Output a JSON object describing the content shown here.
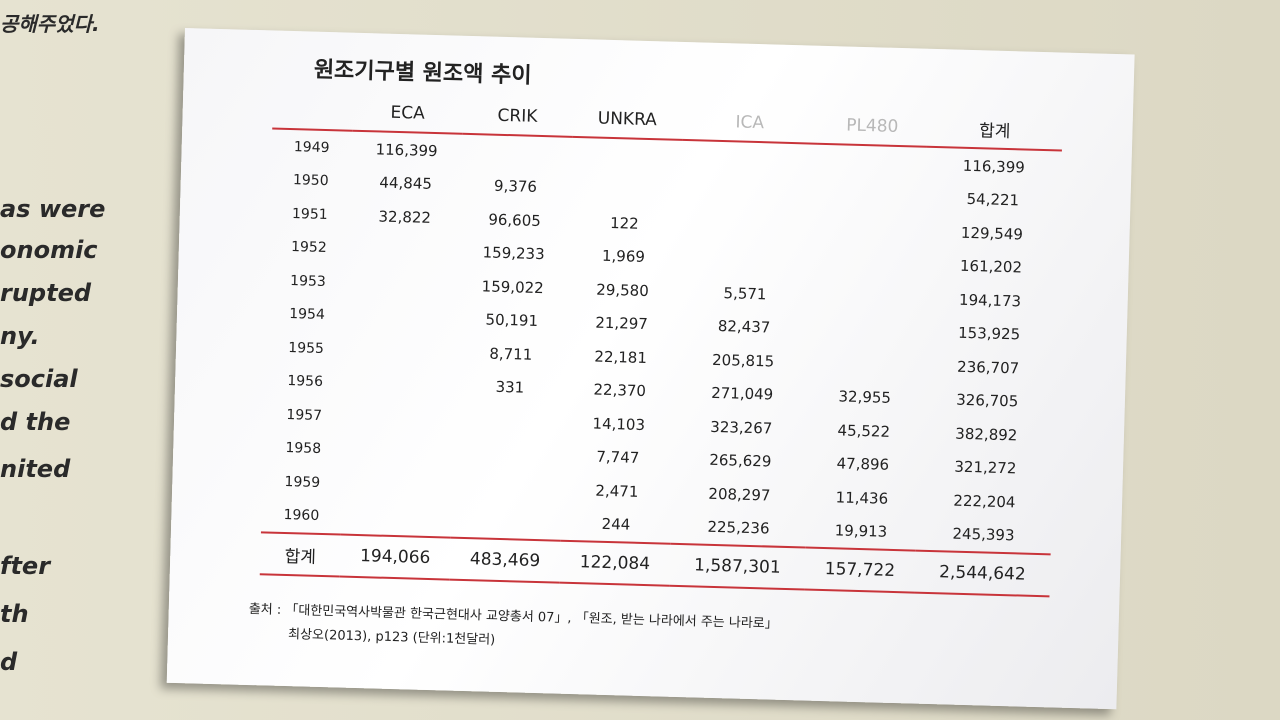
{
  "wall": {
    "lines": [
      "공해주었다.",
      "as were",
      "onomic",
      "rupted",
      "ny.",
      "social",
      "d the",
      "nited",
      "fter",
      "th",
      "d"
    ]
  },
  "board": {
    "title": "원조기구별 원조액 추이",
    "table": {
      "headers": [
        "ECA",
        "CRIK",
        "UNKRA",
        "ICA",
        "PL480",
        "합계"
      ],
      "rows": [
        [
          "1949",
          "116,399",
          null,
          null,
          null,
          null,
          "116,399"
        ],
        [
          "1950",
          "44,845",
          "9,376",
          null,
          null,
          null,
          "54,221"
        ],
        [
          "1951",
          "32,822",
          "96,605",
          "122",
          null,
          null,
          "129,549"
        ],
        [
          "1952",
          null,
          "159,233",
          "1,969",
          null,
          null,
          "161,202"
        ],
        [
          "1953",
          null,
          "159,022",
          "29,580",
          "5,571",
          null,
          "194,173"
        ],
        [
          "1954",
          null,
          "50,191",
          "21,297",
          "82,437",
          null,
          "153,925"
        ],
        [
          "1955",
          null,
          "8,711",
          "22,181",
          "205,815",
          null,
          "236,707"
        ],
        [
          "1956",
          null,
          "331",
          "22,370",
          "271,049",
          "32,955",
          "326,705"
        ],
        [
          "1957",
          null,
          null,
          "14,103",
          "323,267",
          "45,522",
          "382,892"
        ],
        [
          "1958",
          null,
          null,
          "7,747",
          "265,629",
          "47,896",
          "321,272"
        ],
        [
          "1959",
          null,
          null,
          "2,471",
          "208,297",
          "11,436",
          "222,204"
        ],
        [
          "1960",
          null,
          null,
          "244",
          "225,236",
          "19,913",
          "245,393"
        ]
      ],
      "total": [
        "합계",
        "194,066",
        "483,469",
        "122,084",
        "1,587,301",
        "157,722",
        "2,544,642"
      ]
    },
    "source": [
      "출처 : 「대한민국역사박물관 한국근현대사 교양총서 07」, 「원조, 받는 나라에서 주는 나라로」",
      "최상오(2013), p123 (단위:1천달러)"
    ]
  }
}
